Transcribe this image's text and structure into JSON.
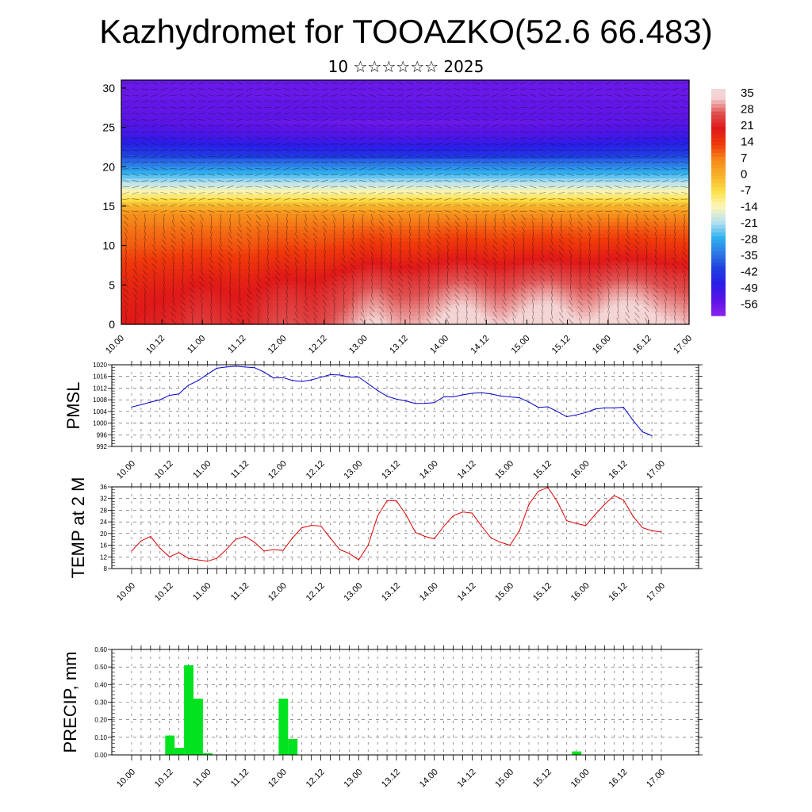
{
  "title": "Kazhydromet for TOOAZKO(52.6 66.483)",
  "subtitle": "10 ☆☆☆☆☆☆ 2025",
  "time_ticks": [
    "10.00",
    "10.12",
    "11.00",
    "11.12",
    "12.00",
    "12.12",
    "13.00",
    "13.12",
    "14.00",
    "14.12",
    "15.00",
    "15.12",
    "16.00",
    "16.12",
    "17.00"
  ],
  "chart_data": [
    {
      "type": "heatmap",
      "name": "cross_section",
      "ylim": [
        0,
        31
      ],
      "yticks": [
        "0",
        "5",
        "10",
        "15",
        "20",
        "25",
        "30"
      ],
      "colorbar_labels": [
        "35",
        "28",
        "21",
        "14",
        "7",
        "0",
        "-7",
        "-14",
        "-21",
        "-28",
        "-35",
        "-42",
        "-49",
        "-56"
      ],
      "colorbar_range": [
        -63,
        39
      ],
      "levels": [
        0,
        2,
        4,
        6,
        8,
        10,
        12,
        14,
        15,
        16,
        17,
        18,
        19,
        20,
        21,
        22,
        23,
        24,
        25,
        26,
        27,
        28,
        29,
        30,
        31
      ],
      "base_profile": [
        21,
        20,
        19,
        17,
        14,
        11,
        9,
        6,
        -1,
        -8,
        -15,
        -21,
        -27,
        -33,
        -39,
        -44,
        -48,
        -52,
        -54,
        -56,
        -57,
        -57,
        -58,
        -58,
        -58
      ],
      "surface_warm_anomaly": [
        0,
        0,
        1,
        2,
        2,
        3,
        3,
        5,
        6,
        6,
        5,
        4,
        3,
        3,
        4,
        6,
        8,
        9,
        9,
        8,
        7,
        8,
        10,
        12,
        14,
        17,
        19,
        20,
        18,
        16,
        16,
        16,
        17,
        19,
        21,
        23,
        24,
        23,
        21,
        19,
        18,
        19,
        21,
        23,
        24,
        25,
        24,
        22,
        20,
        19,
        20,
        22,
        24,
        25,
        25,
        24,
        22,
        20,
        19,
        18,
        17
      ],
      "colorscale": [
        {
          "v": 35,
          "c": "#f4d4d4"
        },
        {
          "v": 28,
          "c": "#e05050"
        },
        {
          "v": 21,
          "c": "#e01818"
        },
        {
          "v": 14,
          "c": "#f03a0a"
        },
        {
          "v": 7,
          "c": "#f68a1a"
        },
        {
          "v": 0,
          "c": "#f7b02a"
        },
        {
          "v": -7,
          "c": "#fbe046"
        },
        {
          "v": -14,
          "c": "#fdf6b8"
        },
        {
          "v": -21,
          "c": "#b7e1f0"
        },
        {
          "v": -28,
          "c": "#2fb1ee"
        },
        {
          "v": -35,
          "c": "#2d78e4"
        },
        {
          "v": -42,
          "c": "#1f3fe0"
        },
        {
          "v": -49,
          "c": "#2a1ce8"
        },
        {
          "v": -56,
          "c": "#5a14e6"
        },
        {
          "v": -63,
          "c": "#8a22ee"
        }
      ]
    },
    {
      "type": "line",
      "name": "pmsl",
      "ylabel": "PMSL",
      "ylim": [
        992,
        1020
      ],
      "yticks": [
        "1020",
        "1016",
        "1012",
        "1008",
        "1004",
        "1000",
        "996",
        "992"
      ],
      "color": "#0000cc",
      "values": [
        1005.5,
        1006.3,
        1007.2,
        1008,
        1009.5,
        1010,
        1013,
        1014.5,
        1016.7,
        1018.8,
        1019.2,
        1019.5,
        1019.2,
        1019,
        1017.5,
        1015.5,
        1015.6,
        1014.6,
        1014.3,
        1014.8,
        1015.7,
        1016.6,
        1016.5,
        1015.8,
        1015.8,
        1013.5,
        1011.2,
        1009.2,
        1008.2,
        1007.6,
        1006.7,
        1006.8,
        1007.0,
        1009.0,
        1009.0,
        1009.7,
        1010.2,
        1010.4,
        1010.0,
        1009.3,
        1009.0,
        1008.7,
        1007.2,
        1005.4,
        1005.6,
        1004.0,
        1002.2,
        1002.8,
        1003.6,
        1004.8,
        1005.2,
        1005.2,
        1005.4,
        1001.0,
        997.0,
        995.7
      ]
    },
    {
      "type": "line",
      "name": "temp2m",
      "ylabel": "TEMP at 2 M",
      "ylim": [
        8,
        36
      ],
      "yticks": [
        "36",
        "32",
        "28",
        "24",
        "20",
        "16",
        "12",
        "8"
      ],
      "color": "#dd0000",
      "values": [
        14,
        17.5,
        19,
        15,
        12,
        13.5,
        11.5,
        11,
        10.5,
        11.5,
        14.5,
        18,
        19,
        17,
        14,
        14.5,
        14.2,
        18.5,
        22,
        22.8,
        22.6,
        18.5,
        14.5,
        13.2,
        11,
        16,
        26,
        31.3,
        31.2,
        26.5,
        20.4,
        19,
        18.2,
        22.5,
        26.1,
        27.4,
        27,
        22.5,
        18.5,
        17,
        16,
        21,
        30,
        34.5,
        35.8,
        31,
        24.4,
        23.5,
        22.7,
        26.5,
        30,
        33,
        31.5,
        26,
        22,
        21,
        20.5
      ]
    },
    {
      "type": "bar",
      "name": "precip",
      "ylabel": "PRECIP, mm",
      "ylim": [
        0,
        0.6
      ],
      "yticks": [
        "0.60",
        "0.50",
        "0.40",
        "0.30",
        "0.20",
        "0.10",
        "0.00"
      ],
      "color": "#00e31e",
      "bars": [
        {
          "t": 4,
          "v": 0.11
        },
        {
          "t": 5,
          "v": 0.04
        },
        {
          "t": 6,
          "v": 0.51
        },
        {
          "t": 7,
          "v": 0.32
        },
        {
          "t": 8,
          "v": 0.01
        },
        {
          "t": 16,
          "v": 0.32
        },
        {
          "t": 17,
          "v": 0.09
        },
        {
          "t": 47,
          "v": 0.02
        }
      ]
    }
  ]
}
